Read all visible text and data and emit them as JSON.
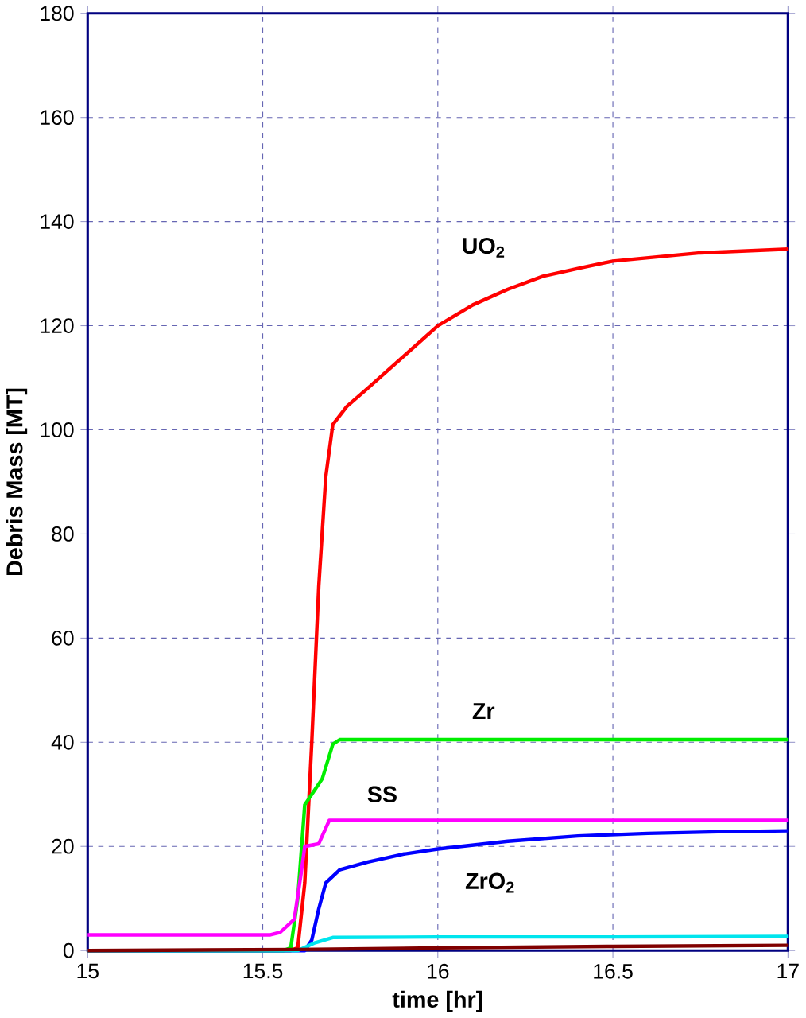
{
  "chart_data": {
    "type": "line",
    "xlabel": "time [hr]",
    "ylabel": "Debris Mass [MT]",
    "xlim": [
      15,
      17
    ],
    "ylim": [
      0,
      180
    ],
    "xticks": [
      15,
      15.5,
      16,
      16.5,
      17
    ],
    "yticks": [
      0,
      20,
      40,
      60,
      80,
      100,
      120,
      140,
      160,
      180
    ],
    "grid": true,
    "marker": "none",
    "line_style": "solid",
    "series": [
      {
        "name": "UO$_{2}$",
        "color": "#ff0000",
        "x": [
          15,
          15.58,
          15.6,
          15.62,
          15.64,
          15.66,
          15.68,
          15.7,
          15.74,
          15.8,
          15.9,
          16,
          16.1,
          16.2,
          16.3,
          16.4,
          16.5,
          16.75,
          17
        ],
        "values": [
          0,
          0,
          0.5,
          13,
          40,
          70,
          91,
          101,
          104.5,
          108,
          114,
          120,
          124,
          127,
          129.5,
          131,
          132.4,
          134,
          134.7
        ]
      },
      {
        "name": "Zr",
        "color": "#00ee00",
        "x": [
          15,
          15.56,
          15.58,
          15.6,
          15.62,
          15.65,
          15.67,
          15.7,
          15.72,
          16,
          16.5,
          17
        ],
        "values": [
          0,
          0,
          0.5,
          10,
          28,
          31,
          33,
          39.6,
          40.5,
          40.5,
          40.5,
          40.5
        ]
      },
      {
        "name": "SS",
        "color": "#ff00ff",
        "x": [
          15,
          15.52,
          15.55,
          15.59,
          15.61,
          15.62,
          15.66,
          15.69,
          15.71,
          16,
          16.5,
          17
        ],
        "values": [
          3,
          3,
          3.5,
          6,
          15,
          20,
          20.5,
          25,
          25,
          25,
          25,
          25
        ]
      },
      {
        "name": "ZrO$_{2}$",
        "color": "#0000ff",
        "x": [
          15,
          15.62,
          15.64,
          15.66,
          15.68,
          15.72,
          15.8,
          15.9,
          16,
          16.2,
          16.4,
          16.6,
          16.8,
          17
        ],
        "values": [
          0,
          0,
          2,
          8,
          13,
          15.5,
          17,
          18.5,
          19.5,
          21,
          22,
          22.5,
          22.8,
          23
        ]
      },
      {
        "color": "#00e5ee",
        "x": [
          15,
          15.6,
          15.65,
          15.7,
          16,
          16.5,
          17
        ],
        "values": [
          0,
          0,
          1.5,
          2.5,
          2.6,
          2.6,
          2.7
        ]
      },
      {
        "color": "#800000",
        "x": [
          15,
          15.6,
          16,
          16.5,
          17
        ],
        "values": [
          0,
          0.2,
          0.5,
          0.8,
          1
        ]
      }
    ]
  }
}
